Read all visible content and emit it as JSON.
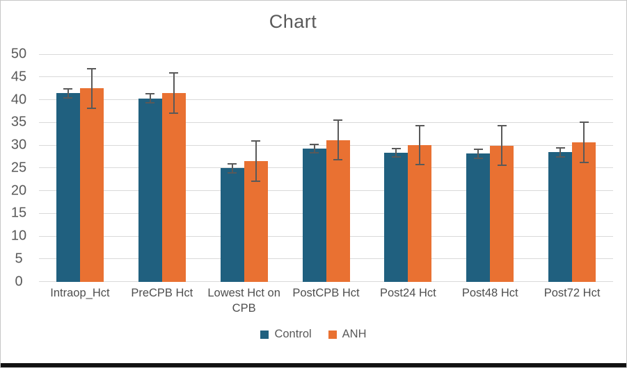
{
  "chart_data": {
    "type": "bar",
    "title": "Chart",
    "categories": [
      "Intraop_Hct",
      "PreCPB Hct",
      "Lowest Hct on CPB",
      "PostCPB Hct",
      "Post24 Hct",
      "Post48 Hct",
      "Post72 Hct"
    ],
    "series": [
      {
        "name": "Control",
        "color": "#20607F",
        "values": [
          41.4,
          40.3,
          24.9,
          29.2,
          28.3,
          28.1,
          28.4
        ],
        "errors": [
          1.1,
          1.1,
          1.2,
          1.1,
          1.1,
          1.1,
          1.1
        ]
      },
      {
        "name": "ANH",
        "color": "#E97132",
        "values": [
          42.5,
          41.4,
          26.5,
          31.1,
          30.0,
          29.9,
          30.6
        ],
        "errors": [
          4.5,
          4.6,
          4.6,
          4.5,
          4.4,
          4.5,
          4.6
        ]
      }
    ],
    "ylim": [
      0,
      50
    ],
    "ytick_step": 5,
    "yticks": [
      0,
      5,
      10,
      15,
      20,
      25,
      30,
      35,
      40,
      45,
      50
    ],
    "grid": true,
    "error_bars": true,
    "legend_position": "bottom",
    "colors": {
      "grid": "#D9D9D9",
      "error_bar": "#595959",
      "title_text": "#595959",
      "axis_text": "#595959",
      "category_text": "#4E4E4E",
      "background": "#FFFFFF",
      "frame_border": "#C6C6C6",
      "bottom_bar": "#111111"
    }
  }
}
